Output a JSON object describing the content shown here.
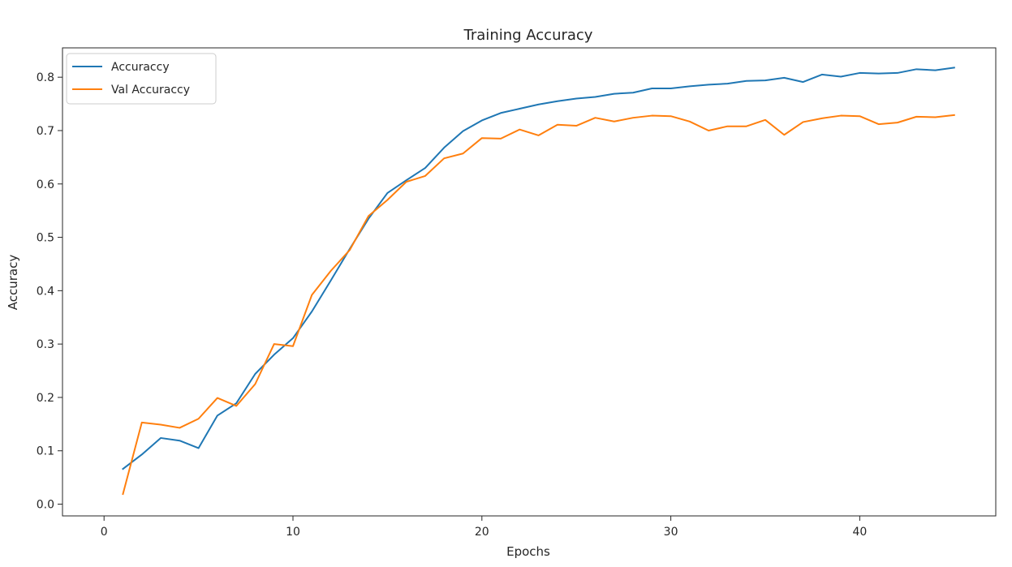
{
  "chart_data": {
    "type": "line",
    "title": "Training Accuracy",
    "xlabel": "Epochs",
    "ylabel": "Accuracy",
    "xlim": [
      -2.2,
      47.2
    ],
    "ylim": [
      -0.022,
      0.855
    ],
    "xticks": [
      0,
      10,
      20,
      30,
      40
    ],
    "yticks": [
      0.0,
      0.1,
      0.2,
      0.3,
      0.4,
      0.5,
      0.6,
      0.7,
      0.8
    ],
    "x": [
      1,
      2,
      3,
      4,
      5,
      6,
      7,
      8,
      9,
      10,
      11,
      12,
      13,
      14,
      15,
      16,
      17,
      18,
      19,
      20,
      21,
      22,
      23,
      24,
      25,
      26,
      27,
      28,
      29,
      30,
      31,
      32,
      33,
      34,
      35,
      36,
      37,
      38,
      39,
      40,
      41,
      42,
      43,
      44,
      45
    ],
    "series": [
      {
        "name": "Accuraccy",
        "color": "#1f77b4",
        "values": [
          0.066,
          0.093,
          0.124,
          0.119,
          0.105,
          0.166,
          0.189,
          0.244,
          0.28,
          0.311,
          0.361,
          0.419,
          0.478,
          0.535,
          0.583,
          0.607,
          0.63,
          0.668,
          0.699,
          0.719,
          0.733,
          0.741,
          0.749,
          0.755,
          0.76,
          0.763,
          0.769,
          0.771,
          0.779,
          0.779,
          0.783,
          0.786,
          0.788,
          0.793,
          0.794,
          0.799,
          0.791,
          0.805,
          0.801,
          0.808,
          0.807,
          0.808,
          0.815,
          0.813,
          0.818
        ]
      },
      {
        "name": "Val Accuraccy",
        "color": "#ff7f0e",
        "values": [
          0.019,
          0.153,
          0.149,
          0.143,
          0.16,
          0.199,
          0.184,
          0.225,
          0.3,
          0.296,
          0.392,
          0.437,
          0.476,
          0.54,
          0.57,
          0.604,
          0.615,
          0.648,
          0.657,
          0.686,
          0.685,
          0.702,
          0.691,
          0.711,
          0.709,
          0.724,
          0.717,
          0.724,
          0.728,
          0.727,
          0.717,
          0.7,
          0.708,
          0.708,
          0.72,
          0.692,
          0.716,
          0.723,
          0.728,
          0.727,
          0.712,
          0.715,
          0.726,
          0.725,
          0.729
        ]
      }
    ],
    "legend": "top-left",
    "grid": false
  }
}
